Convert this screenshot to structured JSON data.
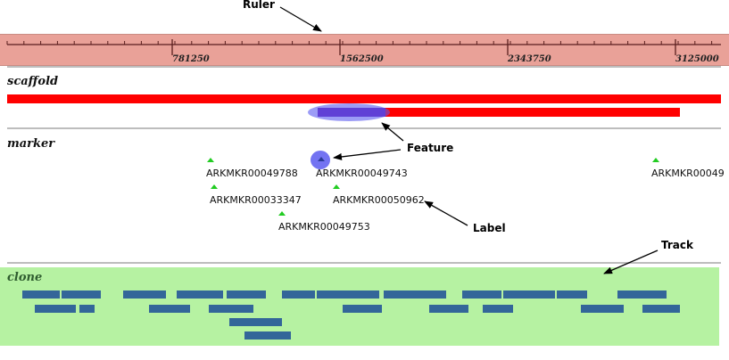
{
  "annotations": {
    "ruler": "Ruler",
    "feature": "Feature",
    "label": "Label",
    "track": "Track"
  },
  "ruler": {
    "ticks": [
      "781250",
      "1562500",
      "2343750",
      "3125000"
    ]
  },
  "tracks": {
    "scaffold": "scaffold",
    "marker": "marker",
    "clone": "clone"
  },
  "markers": [
    "ARKMKR00049788",
    "ARKMKR00049743",
    "ARKMKR00049",
    "ARKMKR00033347",
    "ARKMKR00050962",
    "ARKMKR00049753"
  ],
  "colors": {
    "ruler_band": "#e9a198",
    "scaffold": "#ff0000",
    "highlight": "#6a6af0",
    "marker": "#22cc22",
    "clone_band": "#b6f2a2",
    "clone_bar": "#336699"
  }
}
